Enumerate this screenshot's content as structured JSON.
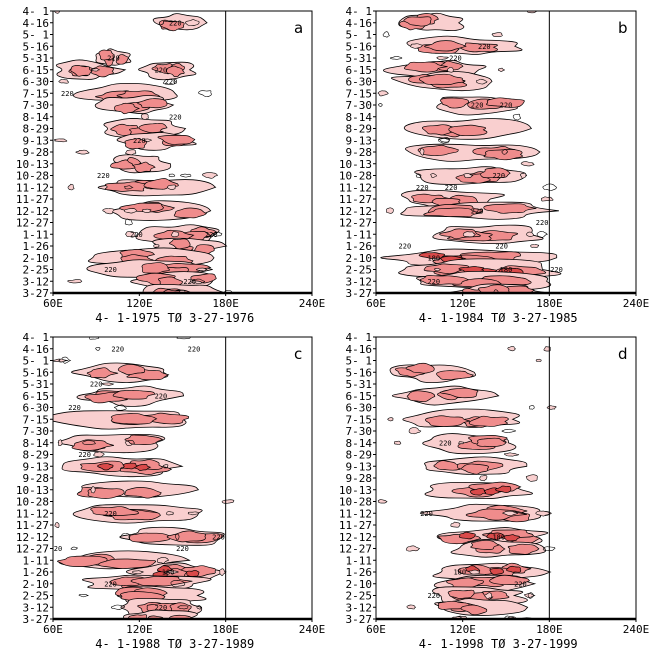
{
  "chart_data": [
    {
      "type": "heatmap",
      "panel": "a",
      "period_caption": "4- 1-1975 TØ  3-27-1976",
      "x_ticks": [
        "60E",
        "120E",
        "180E",
        "240E"
      ],
      "y_ticks": [
        "4- 1",
        "4-16",
        "5- 1",
        "5-16",
        "5-31",
        "6-15",
        "6-30",
        "7-15",
        "7-30",
        "8-14",
        "8-29",
        "9-13",
        "9-28",
        "10-13",
        "10-28",
        "11-12",
        "11-27",
        "12-12",
        "12-27",
        "1-11",
        "1-26",
        "2-10",
        "2-25",
        "3-12",
        "3-27"
      ],
      "xlim": [
        60,
        240
      ],
      "reference_line_x": 180,
      "contour_labels": [
        {
          "text": "220",
          "lon": 145,
          "date": "4-16"
        },
        {
          "text": "220",
          "lon": 102,
          "date": "5-31"
        },
        {
          "text": "220",
          "lon": 135,
          "date": "6-15"
        },
        {
          "text": "220",
          "lon": 142,
          "date": "6-30"
        },
        {
          "text": "220",
          "lon": 70,
          "date": "7-15"
        },
        {
          "text": "220",
          "lon": 145,
          "date": "8-14"
        },
        {
          "text": "220",
          "lon": 120,
          "date": "9-13"
        },
        {
          "text": "220",
          "lon": 95,
          "date": "10-28"
        },
        {
          "text": "220",
          "lon": 170,
          "date": "1-11"
        },
        {
          "text": "220",
          "lon": 118,
          "date": "1-11"
        },
        {
          "text": "220",
          "lon": 100,
          "date": "2-25"
        },
        {
          "text": "220",
          "lon": 155,
          "date": "3-12"
        }
      ],
      "convection_zones": [
        {
          "date": "4-16",
          "lon": [
            130,
            170
          ],
          "level": 1
        },
        {
          "date": "5-31",
          "lon": [
            90,
            115
          ],
          "level": 1
        },
        {
          "date": "6-15",
          "lon": [
            62,
            105
          ],
          "level": 2
        },
        {
          "date": "6-15",
          "lon": [
            120,
            160
          ],
          "level": 1
        },
        {
          "date": "7-15",
          "lon": [
            75,
            150
          ],
          "level": 1
        },
        {
          "date": "7-30",
          "lon": [
            90,
            145
          ],
          "level": 2
        },
        {
          "date": "8-29",
          "lon": [
            95,
            150
          ],
          "level": 1
        },
        {
          "date": "9-13",
          "lon": [
            100,
            160
          ],
          "level": 1
        },
        {
          "date": "10-13",
          "lon": [
            100,
            140
          ],
          "level": 2
        },
        {
          "date": "11-12",
          "lon": [
            95,
            165
          ],
          "level": 1
        },
        {
          "date": "12-12",
          "lon": [
            100,
            175
          ],
          "level": 1
        },
        {
          "date": "1-11",
          "lon": [
            120,
            175
          ],
          "level": 2
        },
        {
          "date": "1-26",
          "lon": [
            130,
            175
          ],
          "level": 2
        },
        {
          "date": "2-10",
          "lon": [
            85,
            170
          ],
          "level": 1
        },
        {
          "date": "2-25",
          "lon": [
            90,
            165
          ],
          "level": 2
        },
        {
          "date": "3-12",
          "lon": [
            115,
            180
          ],
          "level": 2
        },
        {
          "date": "3-27",
          "lon": [
            120,
            175
          ],
          "level": 1
        }
      ]
    },
    {
      "type": "heatmap",
      "panel": "b",
      "period_caption": "4- 1-1984 TØ  3-27-1985",
      "x_ticks": [
        "60E",
        "120E",
        "180E",
        "240E"
      ],
      "y_ticks": [
        "4- 1",
        "4-16",
        "5- 1",
        "5-16",
        "5-31",
        "6-15",
        "6-30",
        "7-15",
        "7-30",
        "8-14",
        "8-29",
        "9-13",
        "9-28",
        "10-13",
        "10-28",
        "11-12",
        "11-27",
        "12-12",
        "12-27",
        "1-11",
        "1-26",
        "2-10",
        "2-25",
        "3-12",
        "3-27"
      ],
      "xlim": [
        60,
        240
      ],
      "reference_line_x": 180,
      "contour_labels": [
        {
          "text": "220",
          "lon": 115,
          "date": "5-31"
        },
        {
          "text": "220",
          "lon": 135,
          "date": "5-16"
        },
        {
          "text": "220",
          "lon": 130,
          "date": "7-30"
        },
        {
          "text": "220",
          "lon": 150,
          "date": "7-30"
        },
        {
          "text": "220",
          "lon": 145,
          "date": "10-28"
        },
        {
          "text": "220",
          "lon": 92,
          "date": "11-12"
        },
        {
          "text": "220",
          "lon": 112,
          "date": "11-12"
        },
        {
          "text": "220",
          "lon": 130,
          "date": "12-12"
        },
        {
          "text": "220",
          "lon": 175,
          "date": "12-27"
        },
        {
          "text": "220",
          "lon": 80,
          "date": "1-26"
        },
        {
          "text": "220",
          "lon": 147,
          "date": "1-26"
        },
        {
          "text": "180",
          "lon": 100,
          "date": "2-10"
        },
        {
          "text": "180",
          "lon": 150,
          "date": "2-25"
        },
        {
          "text": "220",
          "lon": 185,
          "date": "2-25"
        },
        {
          "text": "220",
          "lon": 100,
          "date": "3-12"
        }
      ],
      "convection_zones": [
        {
          "date": "4-16",
          "lon": [
            75,
            120
          ],
          "level": 2
        },
        {
          "date": "5-16",
          "lon": [
            85,
            160
          ],
          "level": 1
        },
        {
          "date": "6-15",
          "lon": [
            70,
            140
          ],
          "level": 2
        },
        {
          "date": "6-30",
          "lon": [
            70,
            150
          ],
          "level": 2
        },
        {
          "date": "7-30",
          "lon": [
            95,
            165
          ],
          "level": 2
        },
        {
          "date": "8-29",
          "lon": [
            85,
            165
          ],
          "level": 2
        },
        {
          "date": "9-28",
          "lon": [
            80,
            170
          ],
          "level": 2
        },
        {
          "date": "10-28",
          "lon": [
            85,
            170
          ],
          "level": 1
        },
        {
          "date": "11-27",
          "lon": [
            75,
            150
          ],
          "level": 2
        },
        {
          "date": "12-12",
          "lon": [
            80,
            180
          ],
          "level": 2
        },
        {
          "date": "1-11",
          "lon": [
            100,
            175
          ],
          "level": 1
        },
        {
          "date": "2-10",
          "lon": [
            62,
            180
          ],
          "level": 3
        },
        {
          "date": "2-25",
          "lon": [
            70,
            190
          ],
          "level": 3
        },
        {
          "date": "3-12",
          "lon": [
            85,
            180
          ],
          "level": 2
        },
        {
          "date": "3-27",
          "lon": [
            110,
            175
          ],
          "level": 1
        }
      ]
    },
    {
      "type": "heatmap",
      "panel": "c",
      "period_caption": "4- 1-1988 TØ  3-27-1989",
      "x_ticks": [
        "60E",
        "120E",
        "180E",
        "240E"
      ],
      "y_ticks": [
        "4- 1",
        "4-16",
        "5- 1",
        "5-16",
        "5-31",
        "6-15",
        "6-30",
        "7-15",
        "7-30",
        "8-14",
        "8-29",
        "9-13",
        "9-28",
        "10-13",
        "10-28",
        "11-12",
        "11-27",
        "12-12",
        "12-27",
        "1-11",
        "1-26",
        "2-10",
        "2-25",
        "3-12",
        "3-27"
      ],
      "xlim": [
        60,
        240
      ],
      "reference_line_x": 180,
      "contour_labels": [
        {
          "text": "220",
          "lon": 105,
          "date": "4-16"
        },
        {
          "text": "220",
          "lon": 158,
          "date": "4-16"
        },
        {
          "text": "220",
          "lon": 90,
          "date": "5-31"
        },
        {
          "text": "220",
          "lon": 135,
          "date": "6-15"
        },
        {
          "text": "220",
          "lon": 75,
          "date": "6-30"
        },
        {
          "text": "220",
          "lon": 82,
          "date": "8-29"
        },
        {
          "text": "220",
          "lon": 100,
          "date": "11-12"
        },
        {
          "text": "220",
          "lon": 175,
          "date": "12-12"
        },
        {
          "text": "220",
          "lon": 62,
          "date": "12-27"
        },
        {
          "text": "220",
          "lon": 150,
          "date": "12-27"
        },
        {
          "text": "180",
          "lon": 140,
          "date": "1-26"
        },
        {
          "text": "220",
          "lon": 100,
          "date": "2-10"
        },
        {
          "text": "220",
          "lon": 135,
          "date": "3-12"
        }
      ],
      "convection_zones": [
        {
          "date": "5-16",
          "lon": [
            70,
            140
          ],
          "level": 2
        },
        {
          "date": "6-15",
          "lon": [
            80,
            150
          ],
          "level": 1
        },
        {
          "date": "7-15",
          "lon": [
            62,
            160
          ],
          "level": 2
        },
        {
          "date": "8-14",
          "lon": [
            65,
            140
          ],
          "level": 2
        },
        {
          "date": "9-13",
          "lon": [
            70,
            145
          ],
          "level": 3
        },
        {
          "date": "10-13",
          "lon": [
            70,
            160
          ],
          "level": 2
        },
        {
          "date": "11-12",
          "lon": [
            80,
            170
          ],
          "level": 2
        },
        {
          "date": "12-12",
          "lon": [
            110,
            180
          ],
          "level": 1
        },
        {
          "date": "1-11",
          "lon": [
            62,
            150
          ],
          "level": 2
        },
        {
          "date": "1-26",
          "lon": [
            110,
            175
          ],
          "level": 3
        },
        {
          "date": "2-10",
          "lon": [
            80,
            170
          ],
          "level": 2
        },
        {
          "date": "2-25",
          "lon": [
            100,
            170
          ],
          "level": 2
        },
        {
          "date": "3-12",
          "lon": [
            105,
            165
          ],
          "level": 2
        },
        {
          "date": "3-27",
          "lon": [
            110,
            160
          ],
          "level": 1
        }
      ]
    },
    {
      "type": "heatmap",
      "panel": "d",
      "period_caption": "4- 1-1998 TØ  3-27-1999",
      "x_ticks": [
        "60E",
        "120E",
        "180E",
        "240E"
      ],
      "y_ticks": [
        "4- 1",
        "4-16",
        "5- 1",
        "5-16",
        "5-31",
        "6-15",
        "6-30",
        "7-15",
        "7-30",
        "8-14",
        "8-29",
        "9-13",
        "9-28",
        "10-13",
        "10-28",
        "11-12",
        "11-27",
        "12-12",
        "12-27",
        "1-11",
        "1-26",
        "2-10",
        "2-25",
        "3-12",
        "3-27"
      ],
      "xlim": [
        60,
        240
      ],
      "reference_line_x": 180,
      "contour_labels": [
        {
          "text": "220",
          "lon": 108,
          "date": "8-14"
        },
        {
          "text": "220",
          "lon": 95,
          "date": "11-12"
        },
        {
          "text": "180",
          "lon": 145,
          "date": "12-12"
        },
        {
          "text": "180",
          "lon": 118,
          "date": "1-26"
        },
        {
          "text": "220",
          "lon": 160,
          "date": "2-10"
        },
        {
          "text": "220",
          "lon": 100,
          "date": "2-25"
        }
      ],
      "convection_zones": [
        {
          "date": "5-16",
          "lon": [
            70,
            130
          ],
          "level": 1
        },
        {
          "date": "6-15",
          "lon": [
            75,
            140
          ],
          "level": 2
        },
        {
          "date": "7-15",
          "lon": [
            80,
            160
          ],
          "level": 2
        },
        {
          "date": "8-14",
          "lon": [
            85,
            160
          ],
          "level": 2
        },
        {
          "date": "9-13",
          "lon": [
            90,
            165
          ],
          "level": 2
        },
        {
          "date": "10-13",
          "lon": [
            95,
            170
          ],
          "level": 3
        },
        {
          "date": "11-12",
          "lon": [
            95,
            175
          ],
          "level": 2
        },
        {
          "date": "12-12",
          "lon": [
            100,
            180
          ],
          "level": 3
        },
        {
          "date": "12-27",
          "lon": [
            110,
            180
          ],
          "level": 2
        },
        {
          "date": "1-26",
          "lon": [
            100,
            175
          ],
          "level": 3
        },
        {
          "date": "2-10",
          "lon": [
            95,
            170
          ],
          "level": 2
        },
        {
          "date": "2-25",
          "lon": [
            95,
            165
          ],
          "level": 2
        },
        {
          "date": "3-12",
          "lon": [
            100,
            160
          ],
          "level": 2
        }
      ]
    }
  ],
  "colors": {
    "level_1": "#f9cfcf",
    "level_2": "#ef8c8c",
    "level_3": "#d94a4a",
    "contour": "#000000",
    "axis": "#000000"
  }
}
